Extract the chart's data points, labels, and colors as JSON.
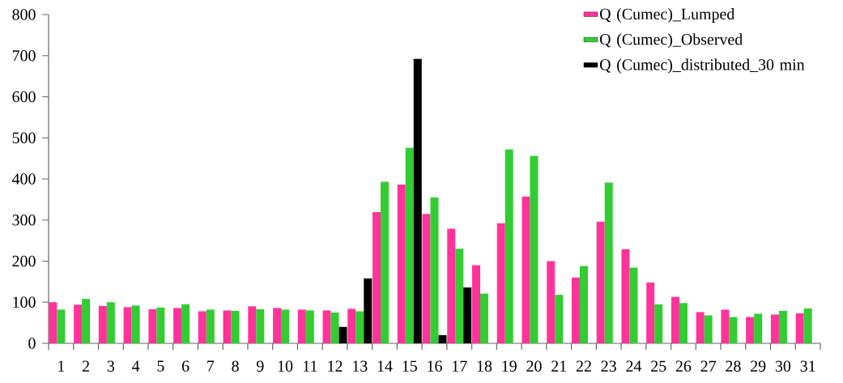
{
  "chart_data": {
    "type": "bar",
    "categories": [
      "1",
      "2",
      "3",
      "4",
      "5",
      "6",
      "7",
      "8",
      "9",
      "10",
      "11",
      "12",
      "13",
      "14",
      "15",
      "16",
      "17",
      "18",
      "19",
      "20",
      "21",
      "22",
      "23",
      "24",
      "25",
      "26",
      "27",
      "28",
      "29",
      "30",
      "31"
    ],
    "series": [
      {
        "name": "Q (Cumec)_Lumped",
        "color": "#ff3399",
        "values": [
          100,
          94,
          91,
          88,
          83,
          86,
          78,
          80,
          90,
          86,
          82,
          80,
          84,
          319,
          386,
          315,
          279,
          190,
          292,
          357,
          200,
          160,
          296,
          229,
          148,
          113,
          76,
          82,
          64,
          70,
          73
        ]
      },
      {
        "name": "Q (Cumec)_Observed",
        "color": "#33cc33",
        "values": [
          82,
          108,
          100,
          92,
          87,
          95,
          82,
          79,
          83,
          82,
          80,
          75,
          78,
          393,
          476,
          355,
          230,
          121,
          472,
          456,
          118,
          188,
          391,
          184,
          95,
          98,
          68,
          64,
          72,
          79,
          85
        ]
      },
      {
        "name": "Q (Cumec)_distributed_30 min",
        "color": "#000000",
        "values": [
          null,
          null,
          null,
          null,
          null,
          null,
          null,
          null,
          null,
          null,
          null,
          40,
          158,
          null,
          692,
          20,
          136,
          null,
          null,
          null,
          null,
          null,
          null,
          null,
          null,
          null,
          null,
          null,
          null,
          null,
          null
        ]
      }
    ],
    "ylim": [
      0,
      800
    ],
    "yticks": [
      0,
      100,
      200,
      300,
      400,
      500,
      600,
      700,
      800
    ],
    "legend": "top right"
  }
}
